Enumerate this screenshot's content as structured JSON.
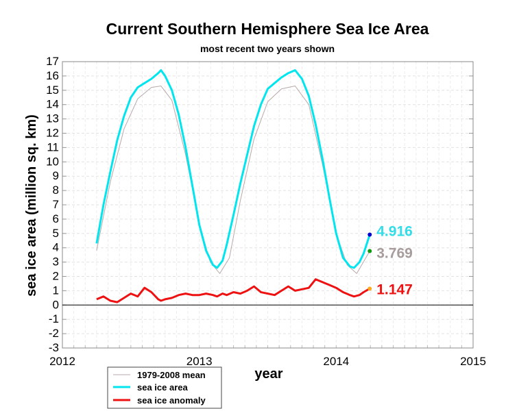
{
  "chart_data": {
    "type": "line",
    "title": "Current Southern Hemisphere Sea Ice Area",
    "subtitle": "most recent two years shown",
    "xlabel": "year",
    "ylabel": "sea ice area (million sq. km)",
    "xlim": [
      2012,
      2015
    ],
    "ylim": [
      -3,
      17
    ],
    "xticks": [
      "2012",
      "2013",
      "2014",
      "2015"
    ],
    "yticks": [
      "-3",
      "-2",
      "-1",
      "0",
      "1",
      "2",
      "3",
      "4",
      "5",
      "6",
      "7",
      "8",
      "9",
      "10",
      "11",
      "12",
      "13",
      "14",
      "15",
      "16",
      "17"
    ],
    "grid": true,
    "legend_position": "bottom-left",
    "series": [
      {
        "name": "1979-2008 mean",
        "color": "#b8a8a8",
        "x": [
          2012.25,
          2012.35,
          2012.45,
          2012.55,
          2012.65,
          2012.72,
          2012.8,
          2012.9,
          2013.0,
          2013.08,
          2013.15,
          2013.22,
          2013.3,
          2013.4,
          2013.5,
          2013.6,
          2013.7,
          2013.8,
          2013.9,
          2014.0,
          2014.08,
          2014.15,
          2014.245
        ],
        "y": [
          3.8,
          8.6,
          12.3,
          14.4,
          15.2,
          15.3,
          14.3,
          10.5,
          5.7,
          3.0,
          2.2,
          3.3,
          7.3,
          11.6,
          14.2,
          15.1,
          15.3,
          14.0,
          9.8,
          5.0,
          2.8,
          2.2,
          3.77
        ]
      },
      {
        "name": "sea ice area",
        "color": "#00e5ee",
        "x": [
          2012.25,
          2012.3,
          2012.35,
          2012.4,
          2012.45,
          2012.5,
          2012.55,
          2012.6,
          2012.65,
          2012.7,
          2012.72,
          2012.75,
          2012.8,
          2012.85,
          2012.9,
          2012.95,
          2013.0,
          2013.05,
          2013.1,
          2013.13,
          2013.17,
          2013.2,
          2013.25,
          2013.3,
          2013.35,
          2013.4,
          2013.45,
          2013.5,
          2013.55,
          2013.6,
          2013.65,
          2013.7,
          2013.75,
          2013.8,
          2013.85,
          2013.9,
          2013.95,
          2014.0,
          2014.05,
          2014.1,
          2014.13,
          2014.17,
          2014.2,
          2014.245
        ],
        "y": [
          4.3,
          7.0,
          9.3,
          11.5,
          13.2,
          14.5,
          15.2,
          15.5,
          15.8,
          16.2,
          16.4,
          16.0,
          15.0,
          13.3,
          11.0,
          8.3,
          5.6,
          3.8,
          2.8,
          2.6,
          3.1,
          4.2,
          6.3,
          8.5,
          10.5,
          12.5,
          14.0,
          15.1,
          15.5,
          15.9,
          16.2,
          16.4,
          15.8,
          14.6,
          12.6,
          10.2,
          7.5,
          5.0,
          3.3,
          2.7,
          2.6,
          3.0,
          3.6,
          4.916
        ]
      },
      {
        "name": "sea ice anomaly",
        "color": "#ee1111",
        "x": [
          2012.25,
          2012.3,
          2012.35,
          2012.4,
          2012.45,
          2012.5,
          2012.55,
          2012.6,
          2012.65,
          2012.7,
          2012.72,
          2012.75,
          2012.8,
          2012.85,
          2012.9,
          2012.95,
          2013.0,
          2013.05,
          2013.1,
          2013.13,
          2013.17,
          2013.2,
          2013.25,
          2013.3,
          2013.35,
          2013.4,
          2013.45,
          2013.5,
          2013.55,
          2013.6,
          2013.65,
          2013.7,
          2013.75,
          2013.8,
          2013.85,
          2013.9,
          2013.95,
          2014.0,
          2014.05,
          2014.1,
          2014.13,
          2014.17,
          2014.2,
          2014.245
        ],
        "y": [
          0.4,
          0.6,
          0.3,
          0.2,
          0.5,
          0.8,
          0.6,
          1.2,
          0.9,
          0.4,
          0.3,
          0.4,
          0.5,
          0.7,
          0.8,
          0.7,
          0.7,
          0.8,
          0.7,
          0.6,
          0.8,
          0.7,
          0.9,
          0.8,
          1.0,
          1.3,
          0.9,
          0.8,
          0.7,
          1.0,
          1.3,
          1.0,
          1.1,
          1.2,
          1.8,
          1.6,
          1.4,
          1.2,
          0.9,
          0.7,
          0.6,
          0.7,
          0.9,
          1.147
        ]
      }
    ],
    "latest_points": [
      {
        "name": "latest area",
        "x": 2014.245,
        "y": 4.916,
        "color": "#0000cc",
        "label": "4.916",
        "label_color": "#33dde8"
      },
      {
        "name": "latest mean",
        "x": 2014.245,
        "y": 3.769,
        "color": "#119911",
        "label": "3.769",
        "label_color": "#a89c9c"
      },
      {
        "name": "latest anomaly",
        "x": 2014.245,
        "y": 1.147,
        "color": "#ffaa22",
        "label": "1.147",
        "label_color": "#ee1111"
      }
    ]
  }
}
